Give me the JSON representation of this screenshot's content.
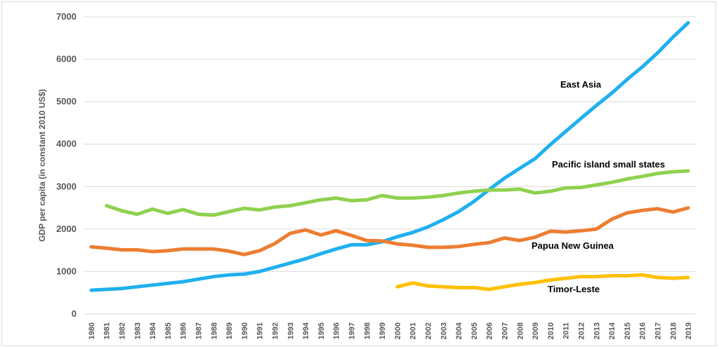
{
  "chart_data": {
    "type": "line",
    "title": "",
    "xlabel": "",
    "ylabel": "GDP per capita (in constant 2010 US$)",
    "ylim": [
      0,
      7000
    ],
    "yticks": [
      "0",
      "1000",
      "2000",
      "3000",
      "4000",
      "5000",
      "6000",
      "7000"
    ],
    "grid": true,
    "x": [
      "1980",
      "1981",
      "1982",
      "1983",
      "1984",
      "1985",
      "1986",
      "1987",
      "1988",
      "1989",
      "1990",
      "1991",
      "1992",
      "1993",
      "1994",
      "1995",
      "1996",
      "1997",
      "1998",
      "1999",
      "2000",
      "2001",
      "2002",
      "2003",
      "2004",
      "2005",
      "2006",
      "2007",
      "2008",
      "2009",
      "2010",
      "2011",
      "2012",
      "2013",
      "2014",
      "2015",
      "2016",
      "2017",
      "2018",
      "2019"
    ],
    "series": [
      {
        "name": "East Asia",
        "color": "#1fb0ef",
        "values": [
          560,
          580,
          600,
          640,
          680,
          720,
          760,
          820,
          880,
          920,
          940,
          1000,
          1100,
          1200,
          1300,
          1420,
          1530,
          1630,
          1630,
          1700,
          1820,
          1920,
          2050,
          2220,
          2410,
          2650,
          2930,
          3200,
          3430,
          3660,
          3990,
          4300,
          4610,
          4910,
          5200,
          5520,
          5820,
          6150,
          6520,
          6860
        ]
      },
      {
        "name": "Pacific island small states",
        "color": "#8fd14f",
        "values": [
          null,
          2550,
          2430,
          2350,
          2470,
          2370,
          2460,
          2350,
          2330,
          2410,
          2490,
          2450,
          2520,
          2550,
          2620,
          2690,
          2730,
          2670,
          2690,
          2790,
          2730,
          2730,
          2750,
          2790,
          2850,
          2890,
          2920,
          2920,
          2940,
          2850,
          2890,
          2970,
          2980,
          3040,
          3100,
          3180,
          3240,
          3310,
          3350,
          3370
        ]
      },
      {
        "name": "Papua New Guinea",
        "color": "#ed7d31",
        "values": [
          1580,
          1550,
          1510,
          1510,
          1470,
          1490,
          1530,
          1530,
          1530,
          1480,
          1400,
          1490,
          1660,
          1900,
          1980,
          1860,
          1960,
          1850,
          1730,
          1720,
          1650,
          1620,
          1570,
          1570,
          1590,
          1640,
          1680,
          1790,
          1730,
          1810,
          1950,
          1930,
          1960,
          2000,
          2230,
          2380,
          2440,
          2480,
          2400,
          2500
        ]
      },
      {
        "name": "Timor-Leste",
        "color": "#ffc000",
        "values": [
          null,
          null,
          null,
          null,
          null,
          null,
          null,
          null,
          null,
          null,
          null,
          null,
          null,
          null,
          null,
          null,
          null,
          null,
          null,
          null,
          640,
          730,
          660,
          640,
          620,
          620,
          580,
          640,
          700,
          740,
          800,
          840,
          880,
          880,
          900,
          900,
          920,
          860,
          840,
          860
        ]
      }
    ],
    "legend": "inline labels next to lines"
  }
}
